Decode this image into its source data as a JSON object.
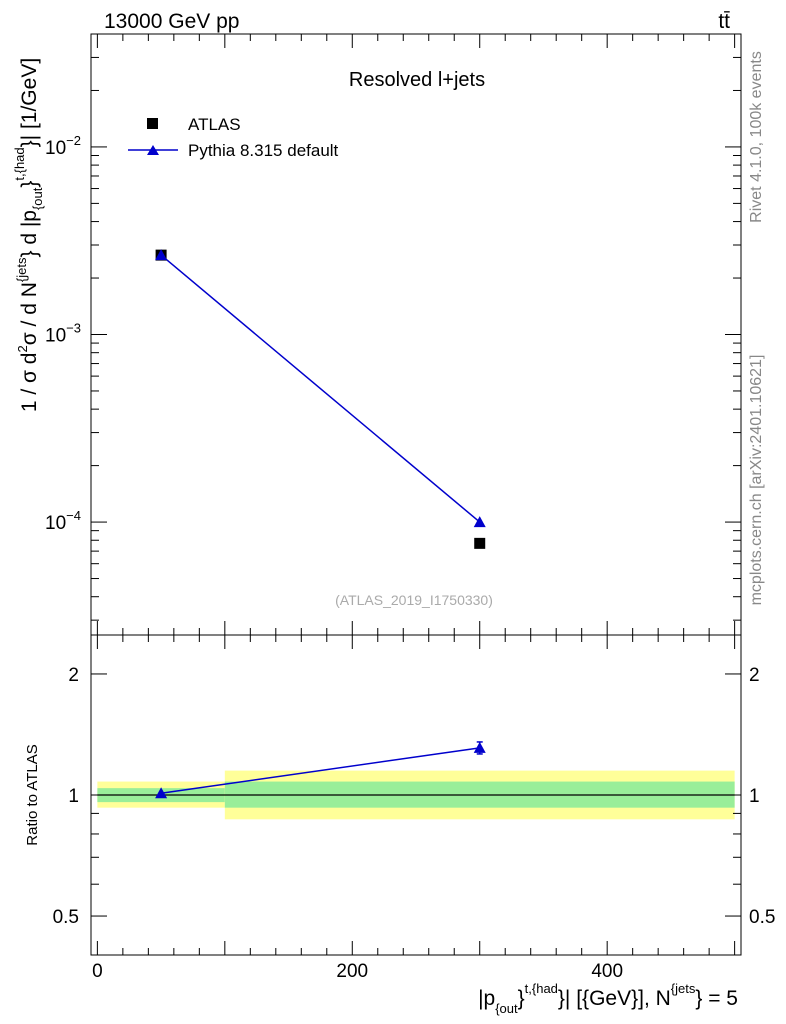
{
  "header": {
    "energy_label": "13000 GeV pp",
    "process_label": "tt̄"
  },
  "side_labels": {
    "rivet": "Rivet 4.1.0,  100k events",
    "site": "mcplots.cern.ch [arXiv:2401.10621]"
  },
  "chart_data": [
    {
      "type": "line",
      "panel": "main",
      "title": "Resolved l+jets",
      "analysis_id": "(ATLAS_2019_I1750330)",
      "ylabel_parts": {
        "a": "1 / σ d",
        "sup1": "2",
        "b": "σ / d N",
        "sup2": "{jets",
        "c": "} d |p",
        "sub1": "{out",
        "d": "}",
        "sup3": "t,{had",
        "e": "}| [1/GeV]"
      },
      "yscale": "log",
      "ylim": [
        2.5e-05,
        0.04
      ],
      "xlim": [
        -5,
        505
      ],
      "y_ticks": [
        {
          "value": 0.01,
          "base": "10",
          "exp": "−2"
        },
        {
          "value": 0.001,
          "base": "10",
          "exp": "−3"
        },
        {
          "value": 0.0001,
          "base": "10",
          "exp": "−4"
        }
      ],
      "legend": [
        {
          "label": "ATLAS",
          "marker": "square",
          "color": "#000000"
        },
        {
          "label": "Pythia 8.315 default",
          "marker": "triangle",
          "color": "#0000cc"
        }
      ],
      "series": [
        {
          "name": "ATLAS",
          "color": "#000000",
          "marker": "square",
          "x": [
            50,
            300
          ],
          "y": [
            0.00265,
            7.7e-05
          ]
        },
        {
          "name": "Pythia 8.315 default",
          "color": "#0000cc",
          "marker": "triangle",
          "x": [
            50,
            300
          ],
          "y": [
            0.00265,
            0.0001
          ]
        }
      ]
    },
    {
      "type": "line",
      "panel": "ratio",
      "ylabel": "Ratio to ATLAS",
      "yscale": "log",
      "ylim": [
        0.4,
        2.5
      ],
      "xlim": [
        -5,
        505
      ],
      "y_ticks": [
        {
          "value": 2,
          "label": "2"
        },
        {
          "value": 1,
          "label": "1"
        },
        {
          "value": 0.5,
          "label": "0.5"
        }
      ],
      "x_ticks": [
        {
          "value": 0,
          "label": "0"
        },
        {
          "value": 200,
          "label": "200"
        },
        {
          "value": 400,
          "label": "400"
        }
      ],
      "xlabel_parts": {
        "a": "|p",
        "sub1": "{out",
        "b": "}",
        "sup1": "t,{had",
        "c": "}| [{GeV}], N",
        "sup2": "{jets",
        "d": "} = 5"
      },
      "bands": [
        {
          "x": [
            0,
            100
          ],
          "inner": [
            0.96,
            1.04
          ],
          "outer": [
            0.93,
            1.08
          ]
        },
        {
          "x": [
            100,
            500
          ],
          "inner": [
            0.93,
            1.08
          ],
          "outer": [
            0.87,
            1.15
          ]
        }
      ],
      "series": [
        {
          "name": "Pythia 8.315 default",
          "color": "#0000cc",
          "marker": "triangle",
          "x": [
            50,
            300
          ],
          "y": [
            1.01,
            1.31
          ],
          "yerr": [
            0.0,
            0.045
          ]
        }
      ]
    }
  ]
}
